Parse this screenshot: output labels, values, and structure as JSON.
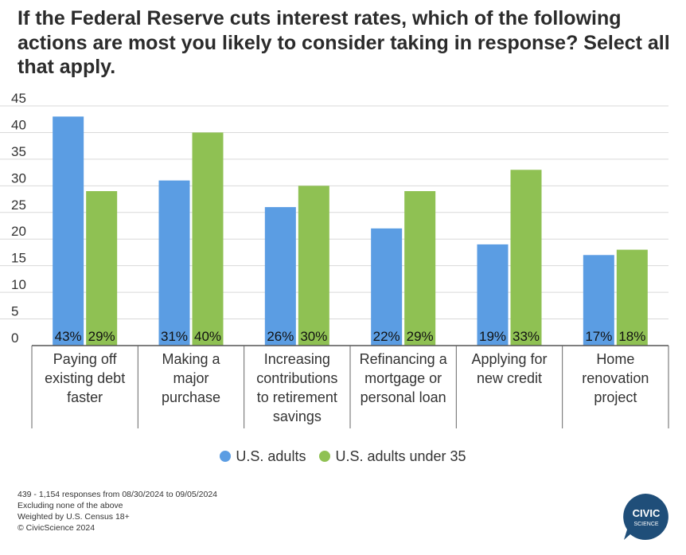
{
  "title": "If the Federal Reserve cuts interest rates, which of the following actions are most you likely to consider taking in response? Select all that apply.",
  "chart_data": {
    "type": "bar",
    "title": "If the Federal Reserve cuts interest rates, which of the following actions are most you likely to consider taking in response? Select all that apply.",
    "categories": [
      [
        "Paying off",
        "existing debt",
        "faster"
      ],
      [
        "Making a",
        "major",
        "purchase"
      ],
      [
        "Increasing",
        "contributions",
        "to retirement",
        "savings"
      ],
      [
        "Refinancing a",
        "mortgage or",
        "personal loan"
      ],
      [
        "Applying for",
        "new credit"
      ],
      [
        "Home",
        "renovation",
        "project"
      ]
    ],
    "series": [
      {
        "name": "U.S. adults",
        "values": [
          43,
          31,
          26,
          22,
          19,
          17
        ],
        "labels": [
          "43%",
          "31%",
          "26%",
          "22%",
          "19%",
          "17%"
        ],
        "color": "#5b9de3"
      },
      {
        "name": "U.S. adults under 35",
        "values": [
          29,
          40,
          30,
          29,
          33,
          18
        ],
        "labels": [
          "29%",
          "40%",
          "30%",
          "29%",
          "33%",
          "18%"
        ],
        "color": "#8fc153"
      }
    ],
    "yticks": [
      "0",
      "5",
      "10",
      "15",
      "20",
      "25",
      "30",
      "35",
      "40",
      "45"
    ],
    "ylim": [
      0,
      45
    ],
    "grid": true,
    "legend_position": "bottom"
  },
  "legend": {
    "items": [
      {
        "label": "U.S. adults",
        "color": "#5b9de3"
      },
      {
        "label": "U.S. adults under 35",
        "color": "#8fc153"
      }
    ]
  },
  "footnotes": [
    "439 - 1,154 responses from 08/30/2024 to 09/05/2024",
    "Excluding none of the above",
    "Weighted by U.S. Census 18+",
    "© CivicScience 2024"
  ],
  "logo": {
    "line1": "CIVIC",
    "line2": "SCIENCE",
    "color": "#1f4e79"
  }
}
